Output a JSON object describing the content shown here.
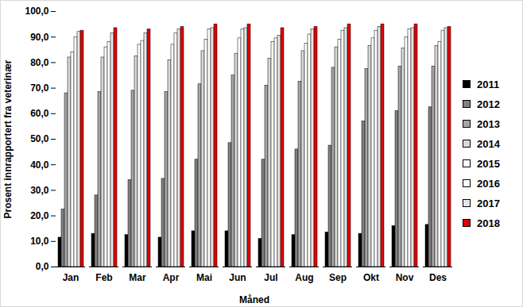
{
  "chart_data": {
    "type": "bar",
    "x_label": "Måned",
    "y_label": "Prosent innrapportert fra veterinær",
    "categories": [
      "Jan",
      "Feb",
      "Mar",
      "Apr",
      "Mai",
      "Jun",
      "Jul",
      "Aug",
      "Sep",
      "Okt",
      "Nov",
      "Des"
    ],
    "series": [
      {
        "name": "2011",
        "color": "#000000",
        "values": [
          11.5,
          13,
          12.5,
          11.5,
          14,
          14,
          11,
          12.5,
          13.5,
          13,
          16,
          16.5
        ]
      },
      {
        "name": "2012",
        "color": "#808080",
        "values": [
          22.5,
          28,
          34,
          34.5,
          42,
          48.5,
          42,
          46,
          47.5,
          57,
          61,
          62.5
        ]
      },
      {
        "name": "2013",
        "color": "#a6a6a6",
        "values": [
          68,
          68.5,
          69,
          68.5,
          71.5,
          75,
          71,
          72.5,
          78,
          77.5,
          78.5,
          78.5
        ]
      },
      {
        "name": "2014",
        "color": "#d9d9d9",
        "values": [
          82,
          82,
          82.5,
          81,
          84.5,
          83.5,
          81.5,
          84.5,
          86,
          86.5,
          85.5,
          86.5
        ]
      },
      {
        "name": "2015",
        "color": "#ffffff",
        "values": [
          84,
          86,
          87,
          87,
          89,
          89.5,
          88,
          87.5,
          89,
          89.5,
          90,
          88
        ]
      },
      {
        "name": "2016",
        "color": "#ffffff",
        "values": [
          90,
          88,
          88.5,
          91.5,
          93,
          93,
          89.5,
          91,
          92.5,
          92.5,
          93,
          92.5
        ]
      },
      {
        "name": "2017",
        "color": "#e6e6e6",
        "values": [
          92,
          91.5,
          91.5,
          93,
          93.5,
          93.5,
          90.5,
          93,
          93.5,
          94,
          93.5,
          93.5
        ]
      },
      {
        "name": "2018",
        "color": "#e00000",
        "values": [
          92.5,
          93.5,
          93,
          94,
          95,
          95,
          93.5,
          94,
          95,
          95,
          95,
          94
        ]
      }
    ],
    "ylim": [
      0,
      100
    ],
    "yticks": [
      {
        "value": 0,
        "label": "0,0"
      },
      {
        "value": 10,
        "label": "10,0"
      },
      {
        "value": 20,
        "label": "20,0"
      },
      {
        "value": 30,
        "label": "30,0"
      },
      {
        "value": 40,
        "label": "40,0"
      },
      {
        "value": 50,
        "label": "50,0"
      },
      {
        "value": 60,
        "label": "60,0"
      },
      {
        "value": 70,
        "label": "70,0"
      },
      {
        "value": 80,
        "label": "80,0"
      },
      {
        "value": 90,
        "label": "90,0"
      },
      {
        "value": 100,
        "label": "100,0"
      }
    ],
    "grid": false,
    "legend": "right"
  }
}
